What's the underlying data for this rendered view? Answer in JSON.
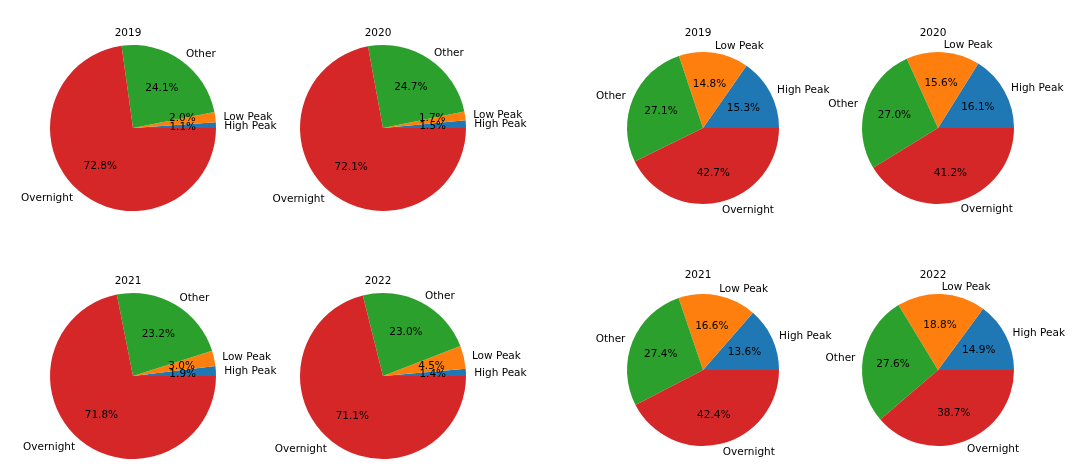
{
  "chart_data": [
    {
      "type": "pie",
      "title": "2019",
      "categories": [
        "High Peak",
        "Low Peak",
        "Other",
        "Overnight"
      ],
      "values": [
        1.1,
        2.0,
        24.1,
        72.8
      ],
      "value_labels": [
        "1.1%",
        "2.0%",
        "24.1%",
        "72.8%"
      ],
      "colors": [
        "#1f77b4",
        "#ff7f0e",
        "#2ca02c",
        "#d62728"
      ]
    },
    {
      "type": "pie",
      "title": "2020",
      "categories": [
        "High Peak",
        "Low Peak",
        "Other",
        "Overnight"
      ],
      "values": [
        1.5,
        1.7,
        24.7,
        72.1
      ],
      "value_labels": [
        "1.5%",
        "1.7%",
        "24.7%",
        "72.1%"
      ],
      "colors": [
        "#1f77b4",
        "#ff7f0e",
        "#2ca02c",
        "#d62728"
      ]
    },
    {
      "type": "pie",
      "title": "2019",
      "categories": [
        "High Peak",
        "Low Peak",
        "Other",
        "Overnight"
      ],
      "values": [
        15.3,
        14.8,
        27.1,
        42.7
      ],
      "value_labels": [
        "15.3%",
        "14.8%",
        "27.1%",
        "42.7%"
      ],
      "colors": [
        "#1f77b4",
        "#ff7f0e",
        "#2ca02c",
        "#d62728"
      ]
    },
    {
      "type": "pie",
      "title": "2020",
      "categories": [
        "High Peak",
        "Low Peak",
        "Other",
        "Overnight"
      ],
      "values": [
        16.1,
        15.6,
        27.0,
        41.2
      ],
      "value_labels": [
        "16.1%",
        "15.6%",
        "27.0%",
        "41.2%"
      ],
      "colors": [
        "#1f77b4",
        "#ff7f0e",
        "#2ca02c",
        "#d62728"
      ]
    },
    {
      "type": "pie",
      "title": "2021",
      "categories": [
        "High Peak",
        "Low Peak",
        "Other",
        "Overnight"
      ],
      "values": [
        1.9,
        3.0,
        23.2,
        71.8
      ],
      "value_labels": [
        "1.9%",
        "3.0%",
        "23.2%",
        "71.8%"
      ],
      "colors": [
        "#1f77b4",
        "#ff7f0e",
        "#2ca02c",
        "#d62728"
      ]
    },
    {
      "type": "pie",
      "title": "2022",
      "categories": [
        "High Peak",
        "Low Peak",
        "Other",
        "Overnight"
      ],
      "values": [
        1.4,
        4.5,
        23.0,
        71.1
      ],
      "value_labels": [
        "1.4%",
        "4.5%",
        "23.0%",
        "71.1%"
      ],
      "colors": [
        "#1f77b4",
        "#ff7f0e",
        "#2ca02c",
        "#d62728"
      ]
    },
    {
      "type": "pie",
      "title": "2021",
      "categories": [
        "High Peak",
        "Low Peak",
        "Other",
        "Overnight"
      ],
      "values": [
        13.6,
        16.6,
        27.4,
        42.4
      ],
      "value_labels": [
        "13.6%",
        "16.6%",
        "27.4%",
        "42.4%"
      ],
      "colors": [
        "#1f77b4",
        "#ff7f0e",
        "#2ca02c",
        "#d62728"
      ]
    },
    {
      "type": "pie",
      "title": "2022",
      "categories": [
        "High Peak",
        "Low Peak",
        "Other",
        "Overnight"
      ],
      "values": [
        14.9,
        18.8,
        27.6,
        38.7
      ],
      "value_labels": [
        "14.9%",
        "18.8%",
        "27.6%",
        "38.7%"
      ],
      "colors": [
        "#1f77b4",
        "#ff7f0e",
        "#2ca02c",
        "#d62728"
      ]
    }
  ]
}
